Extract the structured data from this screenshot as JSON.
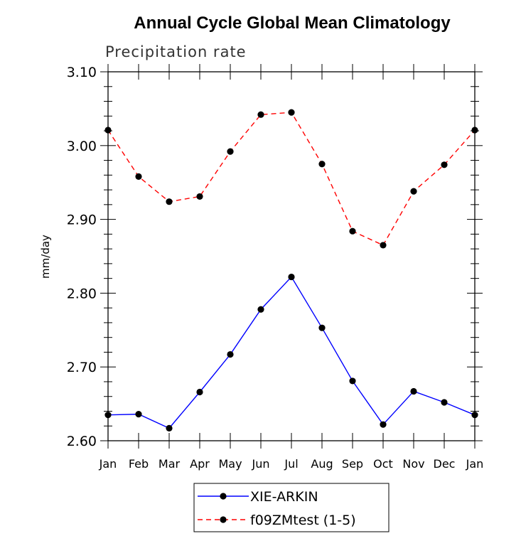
{
  "chart_data": {
    "type": "line",
    "title": "Annual Cycle Global Mean Climatology",
    "subtitle": "Precipitation rate",
    "xlabel": "",
    "ylabel": "mm/day",
    "ylim": [
      2.6,
      3.1
    ],
    "yticks": [
      "2.60",
      "2.70",
      "2.80",
      "2.90",
      "3.00",
      "3.10"
    ],
    "categories": [
      "Jan",
      "Feb",
      "Mar",
      "Apr",
      "May",
      "Jun",
      "Jul",
      "Aug",
      "Sep",
      "Oct",
      "Nov",
      "Dec",
      "Jan"
    ],
    "grid": false,
    "legend_position": "bottom",
    "series": [
      {
        "name": "XIE-ARKIN",
        "color": "#0000ff",
        "line_style": "solid",
        "values": [
          2.635,
          2.636,
          2.617,
          2.666,
          2.717,
          2.778,
          2.822,
          2.753,
          2.681,
          2.622,
          2.667,
          2.652,
          2.635
        ]
      },
      {
        "name": "f09ZMtest (1-5)",
        "color": "#ff0000",
        "line_style": "dashed",
        "values": [
          3.021,
          2.958,
          2.924,
          2.931,
          2.992,
          3.042,
          3.045,
          2.975,
          2.884,
          2.865,
          2.938,
          2.974,
          3.021
        ]
      }
    ]
  }
}
